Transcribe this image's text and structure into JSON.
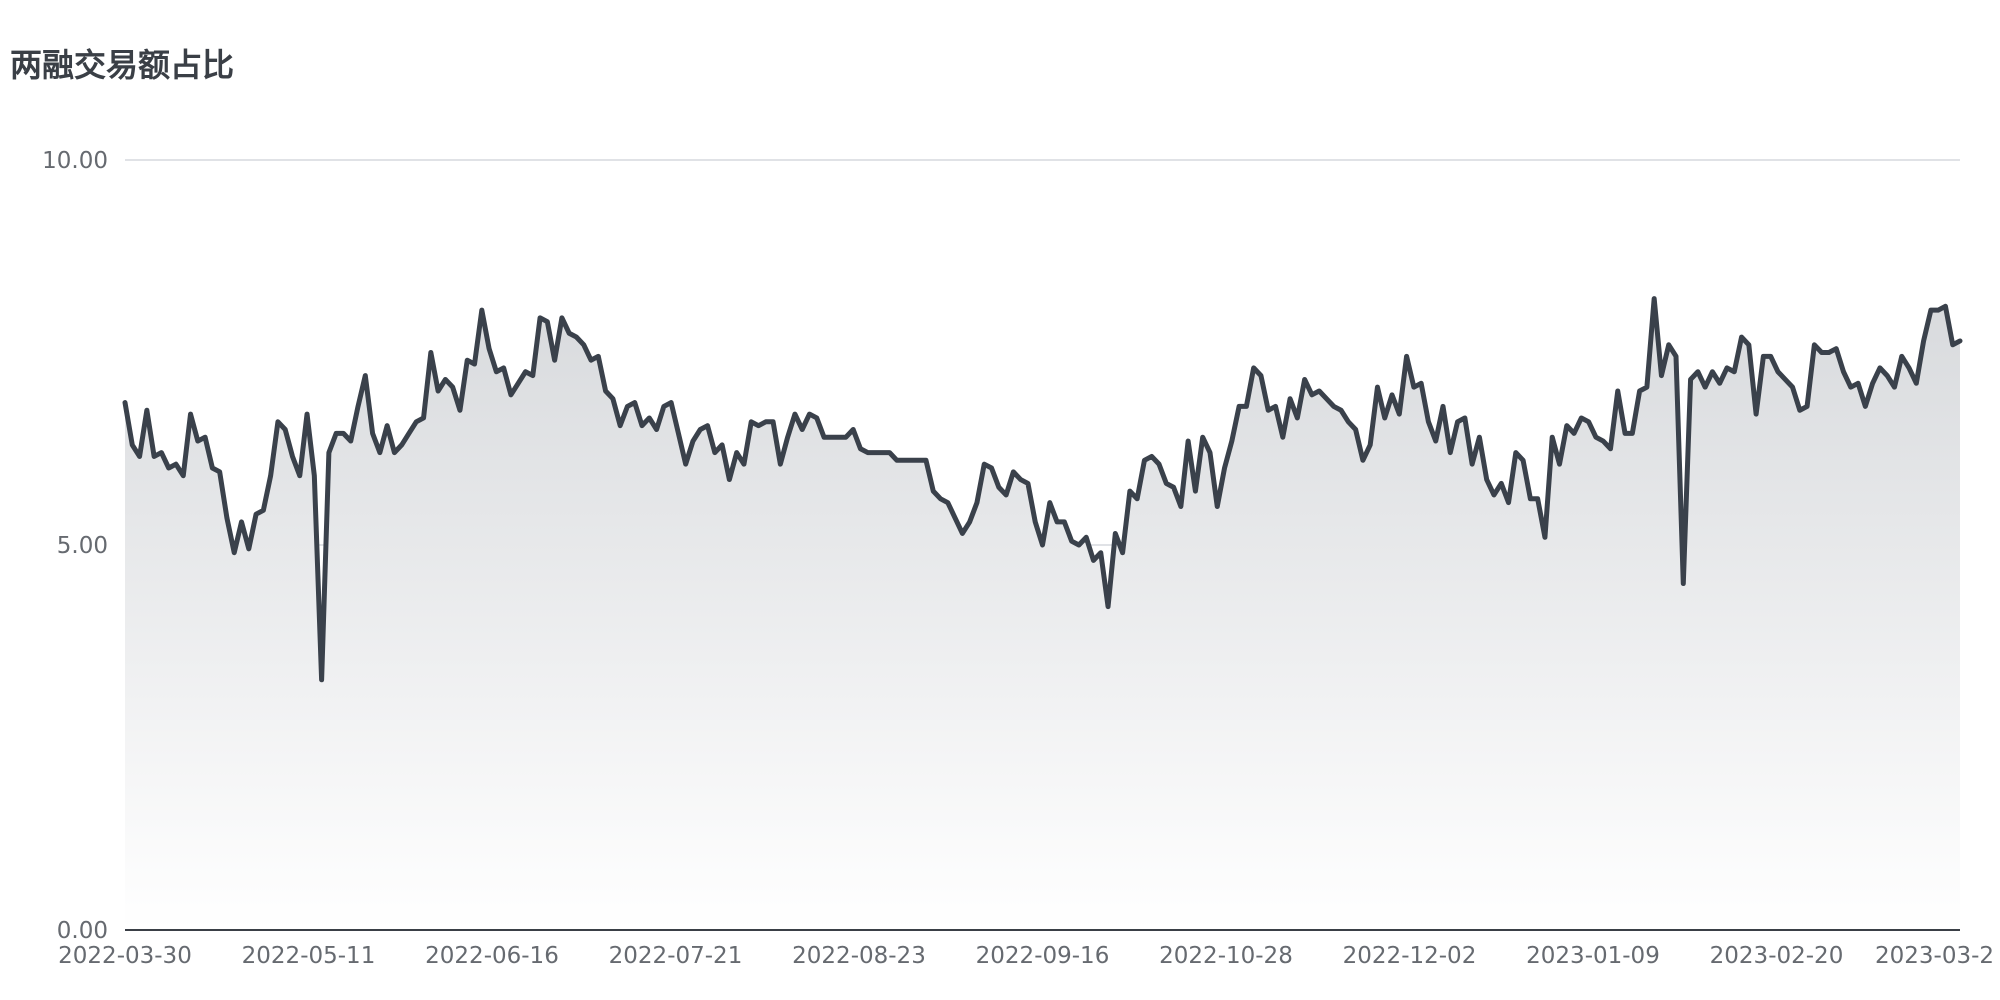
{
  "chart_data": {
    "type": "area",
    "title": "两融交易额占比",
    "xlabel": "",
    "ylabel": "",
    "ylim": [
      0,
      10
    ],
    "y_ticks": [
      "0.00",
      "5.00",
      "10.00"
    ],
    "x_ticks": [
      "2022-03-30",
      "2022-05-11",
      "2022-06-16",
      "2022-07-21",
      "2022-08-23",
      "2022-09-16",
      "2022-10-28",
      "2022-12-02",
      "2023-01-09",
      "2023-02-20",
      "2023-03-2"
    ],
    "grid": true,
    "legend": "none",
    "line_color": "#3a414b",
    "fill_color_top": "#d8dadd",
    "fill_color_bottom": "#ffffff",
    "series": [
      {
        "values": [
          6.85,
          6.3,
          6.15,
          6.75,
          6.15,
          6.2,
          6.0,
          6.05,
          5.9,
          6.7,
          6.35,
          6.4,
          6.0,
          5.95,
          5.35,
          4.9,
          5.3,
          4.95,
          5.4,
          5.45,
          5.9,
          6.6,
          6.5,
          6.15,
          5.9,
          6.7,
          5.9,
          3.25,
          6.2,
          6.45,
          6.45,
          6.35,
          6.8,
          7.2,
          6.45,
          6.2,
          6.55,
          6.2,
          6.3,
          6.45,
          6.6,
          6.65,
          7.5,
          7.0,
          7.15,
          7.05,
          6.75,
          7.4,
          7.35,
          8.05,
          7.55,
          7.25,
          7.3,
          6.95,
          7.1,
          7.25,
          7.2,
          7.95,
          7.9,
          7.4,
          7.95,
          7.75,
          7.7,
          7.6,
          7.4,
          7.45,
          7.0,
          6.9,
          6.55,
          6.8,
          6.85,
          6.55,
          6.65,
          6.5,
          6.8,
          6.85,
          6.45,
          6.05,
          6.35,
          6.5,
          6.55,
          6.2,
          6.3,
          5.85,
          6.2,
          6.05,
          6.6,
          6.55,
          6.6,
          6.6,
          6.05,
          6.4,
          6.7,
          6.5,
          6.7,
          6.65,
          6.4,
          6.4,
          6.4,
          6.4,
          6.5,
          6.25,
          6.2,
          6.2,
          6.2,
          6.2,
          6.1,
          6.1,
          6.1,
          6.1,
          6.1,
          5.7,
          5.6,
          5.55,
          5.35,
          5.15,
          5.3,
          5.55,
          6.05,
          6.0,
          5.75,
          5.65,
          5.95,
          5.85,
          5.8,
          5.3,
          5.0,
          5.55,
          5.3,
          5.3,
          5.05,
          5.0,
          5.1,
          4.8,
          4.9,
          4.2,
          5.15,
          4.9,
          5.7,
          5.6,
          6.1,
          6.15,
          6.05,
          5.8,
          5.75,
          5.5,
          6.35,
          5.7,
          6.4,
          6.2,
          5.5,
          6.0,
          6.35,
          6.8,
          6.8,
          7.3,
          7.2,
          6.75,
          6.8,
          6.4,
          6.9,
          6.65,
          7.15,
          6.95,
          7.0,
          6.9,
          6.8,
          6.75,
          6.6,
          6.5,
          6.1,
          6.3,
          7.05,
          6.65,
          6.95,
          6.7,
          7.45,
          7.05,
          7.1,
          6.6,
          6.35,
          6.8,
          6.2,
          6.6,
          6.65,
          6.05,
          6.4,
          5.85,
          5.65,
          5.8,
          5.55,
          6.2,
          6.1,
          5.6,
          5.6,
          5.1,
          6.4,
          6.05,
          6.55,
          6.45,
          6.65,
          6.6,
          6.4,
          6.35,
          6.25,
          7.0,
          6.45,
          6.45,
          7.0,
          7.05,
          8.2,
          7.2,
          7.6,
          7.45,
          4.5,
          7.15,
          7.25,
          7.05,
          7.25,
          7.1,
          7.3,
          7.25,
          7.7,
          7.6,
          6.7,
          7.45,
          7.45,
          7.25,
          7.15,
          7.05,
          6.75,
          6.8,
          7.6,
          7.5,
          7.5,
          7.55,
          7.25,
          7.05,
          7.1,
          6.8,
          7.1,
          7.3,
          7.2,
          7.05,
          7.45,
          7.3,
          7.1,
          7.65,
          8.05,
          8.05,
          8.1,
          7.6,
          7.65
        ]
      }
    ]
  }
}
